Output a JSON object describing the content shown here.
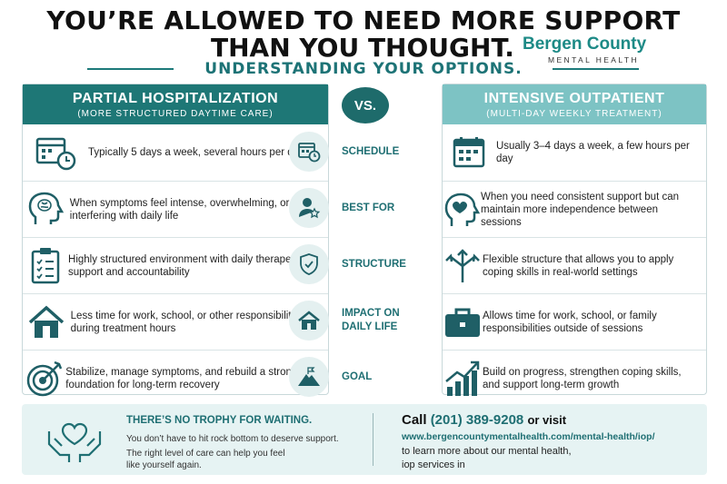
{
  "header": {
    "title_line1": "YOU’RE ALLOWED TO NEED MORE SUPPORT",
    "title_line2": "THAN YOU THOUGHT.",
    "subtitle": "UNDERSTANDING YOUR OPTIONS.",
    "brand_name": "Bergen County",
    "brand_sub": "MENTAL HEALTH"
  },
  "vs_label": "VS.",
  "left": {
    "title": "PARTIAL HOSPITALIZATION",
    "subtitle": "(MORE STRUCTURED DAYTIME CARE)",
    "rows": [
      {
        "icon": "calendar-clock-icon",
        "text": "Typically 5 days a week, several hours per day"
      },
      {
        "icon": "head-brain-icon",
        "text": "When symptoms feel intense, overwhelming, or are interfering with daily life"
      },
      {
        "icon": "clipboard-checklist-icon",
        "text": "Highly structured environment with daily therapeutic support and accountability"
      },
      {
        "icon": "house-icon",
        "text": "Less time for work, school, or other responsibilities during treatment hours"
      },
      {
        "icon": "target-icon",
        "text": "Stabilize, manage symptoms, and rebuild a strong foundation for long-term recovery"
      }
    ]
  },
  "right": {
    "title": "INTENSIVE OUTPATIENT",
    "subtitle": "(MULTI-DAY WEEKLY TREATMENT)",
    "rows": [
      {
        "icon": "calendar-icon",
        "text": "Usually 3–4 days a week, a few hours per day"
      },
      {
        "icon": "head-heart-icon",
        "text": "When you need consistent support but can maintain more independence between sessions"
      },
      {
        "icon": "branching-arrows-icon",
        "text": "Flexible structure that allows you to apply coping skills in real-world settings"
      },
      {
        "icon": "briefcase-icon",
        "text": "Allows time for work, school, or family responsibilities outside of sessions"
      },
      {
        "icon": "growth-chart-icon",
        "text": "Build on progress, strengthen coping skills, and support long-term growth"
      }
    ]
  },
  "categories": [
    {
      "icon": "calendar-clock-icon",
      "label": "SCHEDULE"
    },
    {
      "icon": "person-star-icon",
      "label": "BEST FOR"
    },
    {
      "icon": "shield-check-icon",
      "label": "STRUCTURE"
    },
    {
      "icon": "house-icon",
      "label": "IMPACT ON DAILY LIFE"
    },
    {
      "icon": "mountain-flag-icon",
      "label": "GOAL"
    }
  ],
  "footer": {
    "heading": "THERE’S NO TROPHY FOR WAITING.",
    "line1": "You don’t have to hit rock bottom to deserve support.",
    "line2": "The right level of care can help you feel",
    "line3": "like yourself again.",
    "call_prefix": "Call",
    "phone": "(201) 389-9208",
    "call_suffix": "or visit",
    "url": "www.bergencountymentalhealth.com/mental-health/iop/",
    "more1": "to learn more about our mental health,",
    "more2": "iop services in"
  },
  "colors": {
    "dark_teal": "#1e7776",
    "light_teal": "#7dc3c4",
    "accent_text": "#1f6f73"
  }
}
